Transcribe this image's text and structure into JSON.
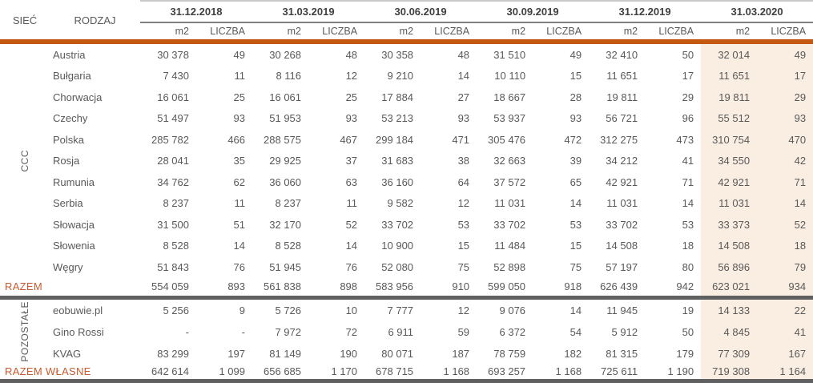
{
  "colors": {
    "accent_band": "#C45911",
    "total_text": "#C75B2E",
    "body_text": "#595959",
    "date_header_text": "#404040",
    "divider": "#606060",
    "header_topline": "#C9C9C9",
    "header_midline": "#7F7F7F",
    "last_period_highlight": "#FAEEE3"
  },
  "header": {
    "siec": "SIEĆ",
    "rodzaj": "RODZAJ",
    "dates": [
      "31.12.2018",
      "31.03.2019",
      "30.06.2019",
      "30.09.2019",
      "31.12.2019",
      "31.03.2020"
    ],
    "subcols": [
      "m2",
      "LICZBA"
    ]
  },
  "chart_data": {
    "type": "table",
    "columns": [
      "SIEĆ",
      "RODZAJ",
      "31.12.2018 m2",
      "31.12.2018 LICZBA",
      "31.03.2019 m2",
      "31.03.2019 LICZBA",
      "30.06.2019 m2",
      "30.06.2019 LICZBA",
      "30.09.2019 m2",
      "30.09.2019 LICZBA",
      "31.12.2019 m2",
      "31.12.2019 LICZBA",
      "31.03.2020 m2",
      "31.03.2020 LICZBA"
    ]
  },
  "sections": [
    {
      "group": "CCC",
      "rows": [
        {
          "label": "Austria",
          "values": [
            "30 378",
            "49",
            "30 268",
            "48",
            "30 358",
            "48",
            "31 510",
            "49",
            "32 410",
            "50",
            "32 014",
            "49"
          ]
        },
        {
          "label": "Bułgaria",
          "values": [
            "7 430",
            "11",
            "8 116",
            "12",
            "9 210",
            "14",
            "10 110",
            "15",
            "11 651",
            "17",
            "11 651",
            "17"
          ]
        },
        {
          "label": "Chorwacja",
          "values": [
            "16 061",
            "25",
            "16 061",
            "25",
            "17 884",
            "27",
            "18 667",
            "28",
            "19 811",
            "29",
            "19 811",
            "29"
          ]
        },
        {
          "label": "Czechy",
          "values": [
            "51 497",
            "93",
            "51 953",
            "93",
            "53 213",
            "93",
            "53 937",
            "93",
            "56 721",
            "96",
            "55 512",
            "93"
          ]
        },
        {
          "label": "Polska",
          "values": [
            "285 782",
            "466",
            "288 575",
            "467",
            "299 184",
            "471",
            "305 476",
            "472",
            "312 275",
            "473",
            "310 754",
            "470"
          ]
        },
        {
          "label": "Rosja",
          "values": [
            "28 041",
            "35",
            "29 925",
            "37",
            "31 683",
            "38",
            "32 663",
            "39",
            "34 212",
            "41",
            "34 550",
            "42"
          ]
        },
        {
          "label": "Rumunia",
          "values": [
            "34 762",
            "62",
            "36 060",
            "63",
            "36 160",
            "64",
            "37 572",
            "65",
            "42 921",
            "71",
            "42 921",
            "71"
          ]
        },
        {
          "label": "Serbia",
          "values": [
            "8 237",
            "11",
            "8 237",
            "11",
            "9 582",
            "12",
            "11 031",
            "14",
            "11 031",
            "14",
            "11 031",
            "14"
          ]
        },
        {
          "label": "Słowacja",
          "values": [
            "31 500",
            "51",
            "32 170",
            "52",
            "33 702",
            "53",
            "33 702",
            "53",
            "33 702",
            "53",
            "33 373",
            "52"
          ]
        },
        {
          "label": "Słowenia",
          "values": [
            "8 528",
            "14",
            "8 528",
            "14",
            "10 900",
            "15",
            "11 484",
            "15",
            "14 508",
            "18",
            "14 508",
            "18"
          ]
        },
        {
          "label": "Węgry",
          "values": [
            "51 843",
            "76",
            "51 945",
            "76",
            "52 080",
            "75",
            "52 898",
            "75",
            "57 197",
            "80",
            "56 896",
            "79"
          ]
        }
      ],
      "total": {
        "label": "RAZEM",
        "values": [
          "554 059",
          "893",
          "561 838",
          "898",
          "583 956",
          "910",
          "599 050",
          "918",
          "626 439",
          "942",
          "623 021",
          "934"
        ]
      }
    },
    {
      "group": "POZOSTAŁE",
      "rows": [
        {
          "label": "eobuwie.pl",
          "values": [
            "5 256",
            "9",
            "5 726",
            "10",
            "7 777",
            "12",
            "9 076",
            "14",
            "11 945",
            "19",
            "14 133",
            "22"
          ]
        },
        {
          "label": "Gino Rossi",
          "values": [
            "-",
            "-",
            "7 972",
            "72",
            "6 911",
            "59",
            "6 372",
            "54",
            "5 912",
            "50",
            "4 845",
            "41"
          ]
        },
        {
          "label": "KVAG",
          "values": [
            "83 299",
            "197",
            "81 149",
            "190",
            "80 071",
            "187",
            "78 759",
            "182",
            "81 315",
            "179",
            "77 309",
            "167"
          ]
        }
      ],
      "total": {
        "label": "RAZEM WŁASNE",
        "values": [
          "642 614",
          "1 099",
          "656 685",
          "1 170",
          "678 715",
          "1 168",
          "693 257",
          "1 168",
          "725 611",
          "1 190",
          "719 308",
          "1 164"
        ]
      }
    }
  ]
}
